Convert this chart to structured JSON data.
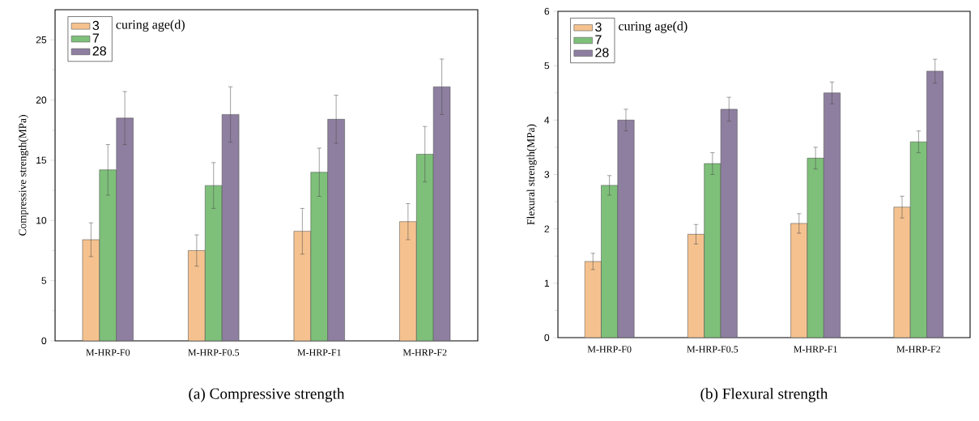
{
  "chart_data": [
    {
      "type": "bar",
      "title": "(a)  Compressive strength",
      "ylabel": "Compressive strength(MPa)",
      "legend_title": "curing age(d)",
      "legend": "top left",
      "grid": false,
      "categories": [
        "M-HRP-F0",
        "M-HRP-F0.5",
        "M-HRP-F1",
        "M-HRP-F2"
      ],
      "ylim": [
        0,
        27.5
      ],
      "yticks": [
        0,
        5,
        10,
        15,
        20,
        25
      ],
      "series": [
        {
          "name": "3",
          "color": "#f5c28f",
          "values": [
            8.4,
            7.5,
            9.1,
            9.9
          ],
          "errors": [
            1.4,
            1.3,
            1.9,
            1.5
          ]
        },
        {
          "name": "7",
          "color": "#7ec07a",
          "values": [
            14.2,
            12.9,
            14.0,
            15.5
          ],
          "errors": [
            2.1,
            1.9,
            2.0,
            2.3
          ]
        },
        {
          "name": "28",
          "color": "#8e7fa0",
          "values": [
            18.5,
            18.8,
            18.4,
            21.1
          ],
          "errors": [
            2.2,
            2.3,
            2.0,
            2.3
          ]
        }
      ]
    },
    {
      "type": "bar",
      "title": "(b)  Flexural strength",
      "ylabel": "Flexural strength(MPa)",
      "legend_title": "curing age(d)",
      "legend": "top left",
      "grid": false,
      "categories": [
        "M-HRP-F0",
        "M-HRP-F0.5",
        "M-HRP-F1",
        "M-HRP-F2"
      ],
      "ylim": [
        0,
        6
      ],
      "yticks": [
        0,
        1,
        2,
        3,
        4,
        5,
        6
      ],
      "series": [
        {
          "name": "3",
          "color": "#f5c28f",
          "values": [
            1.4,
            1.9,
            2.1,
            2.4
          ],
          "errors": [
            0.15,
            0.18,
            0.18,
            0.2
          ]
        },
        {
          "name": "7",
          "color": "#7ec07a",
          "values": [
            2.8,
            3.2,
            3.3,
            3.6
          ],
          "errors": [
            0.18,
            0.2,
            0.2,
            0.2
          ]
        },
        {
          "name": "28",
          "color": "#8e7fa0",
          "values": [
            4.0,
            4.2,
            4.5,
            4.9
          ],
          "errors": [
            0.2,
            0.22,
            0.2,
            0.22
          ]
        }
      ]
    }
  ]
}
